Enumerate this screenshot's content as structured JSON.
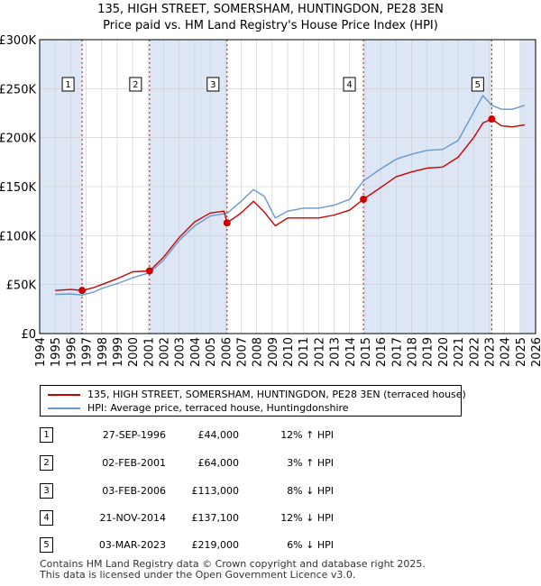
{
  "title_line1": "135, HIGH STREET, SOMERSHAM, HUNTINGDON, PE28 3EN",
  "title_line2": "Price paid vs. HM Land Registry's House Price Index (HPI)",
  "colors": {
    "property": "#cc0000",
    "hpi": "#6699cc",
    "shade": "#dde6f5",
    "grid": "#cccccc",
    "vline": "#cc0000"
  },
  "legend": {
    "property_label": "135, HIGH STREET, SOMERSHAM, HUNTINGDON, PE28 3EN (terraced house)",
    "hpi_label": "HPI: Average price, terraced house, Huntingdonshire"
  },
  "transactions": [
    {
      "num": "1",
      "date": "27-SEP-1996",
      "price": "£44,000",
      "hpi": "12% ↑ HPI"
    },
    {
      "num": "2",
      "date": "02-FEB-2001",
      "price": "£64,000",
      "hpi": "3% ↑ HPI"
    },
    {
      "num": "3",
      "date": "03-FEB-2006",
      "price": "£113,000",
      "hpi": "8% ↓ HPI"
    },
    {
      "num": "4",
      "date": "21-NOV-2014",
      "price": "£137,100",
      "hpi": "12% ↓ HPI"
    },
    {
      "num": "5",
      "date": "03-MAR-2023",
      "price": "£219,000",
      "hpi": "6% ↓ HPI"
    }
  ],
  "footer_line1": "Contains HM Land Registry data © Crown copyright and database right 2025.",
  "footer_line2": "This data is licensed under the Open Government Licence v3.0.",
  "chart_data": {
    "type": "line",
    "xlim": [
      1994,
      2026
    ],
    "ylim": [
      0,
      300000
    ],
    "y_ticks": [
      0,
      50000,
      100000,
      150000,
      200000,
      250000,
      300000
    ],
    "y_tick_labels": [
      "£0",
      "£50K",
      "£100K",
      "£150K",
      "£200K",
      "£250K",
      "£300K"
    ],
    "x_ticks": [
      1994,
      1995,
      1996,
      1997,
      1998,
      1999,
      2000,
      2001,
      2002,
      2003,
      2004,
      2005,
      2006,
      2007,
      2008,
      2009,
      2010,
      2011,
      2012,
      2013,
      2014,
      2015,
      2016,
      2017,
      2018,
      2019,
      2020,
      2021,
      2022,
      2023,
      2024,
      2025,
      2026
    ],
    "x_tick_labels": [
      "1994",
      "1995",
      "1996",
      "1997",
      "1998",
      "1999",
      "2000",
      "2001",
      "2002",
      "2003",
      "2004",
      "2005",
      "2006",
      "2007",
      "2008",
      "2009",
      "2010",
      "2011",
      "2012",
      "2013",
      "2014",
      "2015",
      "2016",
      "2017",
      "2018",
      "2019",
      "2020",
      "2021",
      "2022",
      "2023",
      "2024",
      "2025",
      "2026"
    ],
    "shaded_spans": [
      [
        1994.0,
        1996.74
      ],
      [
        2001.09,
        2006.09
      ],
      [
        2014.89,
        2023.17
      ],
      [
        2025.0,
        2026.0
      ]
    ],
    "sales": [
      {
        "label": "1",
        "x": 1996.74,
        "y": 44000
      },
      {
        "label": "2",
        "x": 2001.09,
        "y": 64000
      },
      {
        "label": "3",
        "x": 2006.09,
        "y": 113000
      },
      {
        "label": "4",
        "x": 2014.89,
        "y": 137100
      },
      {
        "label": "5",
        "x": 2023.17,
        "y": 219000
      }
    ],
    "series": [
      {
        "name": "HPI: Average price, terraced house, Huntingdonshire",
        "x": [
          1995.0,
          1996.0,
          1996.74,
          1997.5,
          1998.0,
          1999.0,
          2000.0,
          2001.09,
          2002.0,
          2003.0,
          2004.0,
          2005.0,
          2006.09,
          2007.0,
          2007.8,
          2008.5,
          2009.2,
          2010.0,
          2011.0,
          2012.0,
          2013.0,
          2014.0,
          2014.89,
          2016.0,
          2017.0,
          2018.0,
          2019.0,
          2020.0,
          2021.0,
          2022.0,
          2022.6,
          2023.17,
          2023.8,
          2024.5,
          2025.3
        ],
        "y": [
          40000,
          40500,
          39300,
          42500,
          46000,
          51000,
          57000,
          62000,
          75000,
          95000,
          110000,
          120000,
          122800,
          135000,
          147000,
          140000,
          118000,
          125000,
          128000,
          128000,
          131000,
          137000,
          155800,
          168000,
          178000,
          183000,
          187000,
          188000,
          197000,
          226000,
          243000,
          233000,
          229000,
          229000,
          233000
        ]
      },
      {
        "name": "135, HIGH STREET, SOMERSHAM, HUNTINGDON, PE28 3EN (terraced house)",
        "x": [
          1995.0,
          1996.0,
          1996.74,
          1997.5,
          1998.0,
          1999.0,
          2000.0,
          2001.09,
          2002.0,
          2003.0,
          2004.0,
          2005.0,
          2005.9,
          2006.09,
          2007.0,
          2007.8,
          2008.5,
          2009.2,
          2010.0,
          2011.0,
          2012.0,
          2013.0,
          2014.0,
          2014.89,
          2016.0,
          2017.0,
          2018.0,
          2019.0,
          2020.0,
          2021.0,
          2022.0,
          2022.6,
          2023.17,
          2023.8,
          2024.5,
          2025.3
        ],
        "y": [
          44000,
          45000,
          44000,
          47000,
          50000,
          56000,
          63000,
          64000,
          78000,
          98000,
          114000,
          123000,
          125000,
          113000,
          123000,
          135000,
          124000,
          110000,
          118000,
          118000,
          118000,
          121000,
          126000,
          137100,
          149000,
          160000,
          165000,
          169000,
          170000,
          180000,
          200000,
          215000,
          219000,
          212000,
          211000,
          213000
        ]
      }
    ]
  }
}
